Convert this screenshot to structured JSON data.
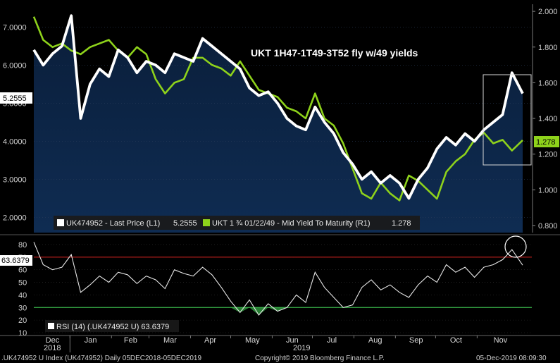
{
  "chart_data": [
    {
      "type": "line",
      "title": "UKT 1H47-1T49-3T52 fly w/49 yields",
      "x_range": [
        "2018-12-05",
        "2019-12-05"
      ],
      "left_axis": {
        "ticks": [
          "7.0000",
          "6.0000",
          "5.0000",
          "4.0000",
          "3.0000",
          "2.0000"
        ],
        "ylim": [
          1.6,
          7.6
        ]
      },
      "right_axis": {
        "ticks": [
          "2.000",
          "1.800",
          "1.600",
          "1.400",
          "1.200",
          "1.000",
          "0.800"
        ],
        "ylim": [
          0.76,
          2.04
        ]
      },
      "series": [
        {
          "name": "UK474952 - Last Price (L1)",
          "axis": "left",
          "color": "#ffffff",
          "last_label": "5.2555",
          "legend_value": "5.2555",
          "x": [
            "2018-12-05",
            "2018-12-12",
            "2018-12-19",
            "2018-12-26",
            "2019-01-02",
            "2019-01-09",
            "2019-01-16",
            "2019-01-23",
            "2019-01-30",
            "2019-02-06",
            "2019-02-13",
            "2019-02-20",
            "2019-02-27",
            "2019-03-06",
            "2019-03-13",
            "2019-03-20",
            "2019-03-27",
            "2019-04-03",
            "2019-04-10",
            "2019-04-17",
            "2019-04-24",
            "2019-05-01",
            "2019-05-08",
            "2019-05-15",
            "2019-05-22",
            "2019-05-29",
            "2019-06-05",
            "2019-06-12",
            "2019-06-19",
            "2019-06-26",
            "2019-07-03",
            "2019-07-10",
            "2019-07-17",
            "2019-07-24",
            "2019-07-31",
            "2019-08-07",
            "2019-08-14",
            "2019-08-21",
            "2019-08-28",
            "2019-09-04",
            "2019-09-11",
            "2019-09-18",
            "2019-09-25",
            "2019-10-02",
            "2019-10-09",
            "2019-10-16",
            "2019-10-23",
            "2019-10-30",
            "2019-11-06",
            "2019-11-13",
            "2019-11-20",
            "2019-11-27",
            "2019-12-05"
          ],
          "values": [
            6.4,
            6.0,
            6.3,
            6.5,
            7.3,
            4.6,
            5.5,
            5.9,
            5.7,
            6.4,
            6.2,
            5.8,
            6.1,
            6.0,
            5.8,
            6.3,
            6.2,
            6.1,
            6.7,
            6.5,
            6.3,
            6.1,
            5.9,
            5.4,
            5.2,
            5.3,
            5.0,
            4.6,
            4.4,
            4.3,
            4.9,
            4.5,
            4.2,
            3.7,
            3.4,
            3.0,
            3.2,
            2.9,
            3.1,
            2.9,
            2.5,
            3.0,
            3.3,
            3.8,
            4.1,
            3.9,
            4.2,
            4.0,
            4.3,
            4.5,
            4.7,
            5.8,
            5.2555
          ]
        },
        {
          "name": "UKT 1 ¾ 01/22/49 - Mid Yield To Maturity (R1)",
          "axis": "right",
          "color": "#8ed21b",
          "last_label": "1.278",
          "legend_value": "1.278",
          "x": [
            "2018-12-05",
            "2018-12-12",
            "2018-12-19",
            "2018-12-26",
            "2019-01-02",
            "2019-01-09",
            "2019-01-16",
            "2019-01-23",
            "2019-01-30",
            "2019-02-06",
            "2019-02-13",
            "2019-02-20",
            "2019-02-27",
            "2019-03-06",
            "2019-03-13",
            "2019-03-20",
            "2019-03-27",
            "2019-04-03",
            "2019-04-10",
            "2019-04-17",
            "2019-04-24",
            "2019-05-01",
            "2019-05-08",
            "2019-05-15",
            "2019-05-22",
            "2019-05-29",
            "2019-06-05",
            "2019-06-12",
            "2019-06-19",
            "2019-06-26",
            "2019-07-03",
            "2019-07-10",
            "2019-07-17",
            "2019-07-24",
            "2019-07-31",
            "2019-08-07",
            "2019-08-14",
            "2019-08-21",
            "2019-08-28",
            "2019-09-04",
            "2019-09-11",
            "2019-09-18",
            "2019-09-25",
            "2019-10-02",
            "2019-10-09",
            "2019-10-16",
            "2019-10-23",
            "2019-10-30",
            "2019-11-06",
            "2019-11-13",
            "2019-11-20",
            "2019-11-27",
            "2019-12-05"
          ],
          "values": [
            1.97,
            1.84,
            1.8,
            1.82,
            1.78,
            1.76,
            1.8,
            1.82,
            1.84,
            1.78,
            1.74,
            1.8,
            1.76,
            1.62,
            1.54,
            1.6,
            1.62,
            1.74,
            1.74,
            1.7,
            1.68,
            1.64,
            1.72,
            1.64,
            1.56,
            1.54,
            1.52,
            1.46,
            1.44,
            1.4,
            1.54,
            1.4,
            1.36,
            1.26,
            1.12,
            0.98,
            0.95,
            1.04,
            0.98,
            0.94,
            1.08,
            1.05,
            1.0,
            0.95,
            1.1,
            1.16,
            1.2,
            1.28,
            1.32,
            1.26,
            1.28,
            1.22,
            1.278
          ]
        }
      ],
      "annotations": [
        "rectangle-highlight-recent-move"
      ]
    },
    {
      "type": "line",
      "name": "RSI (14) (.UK474952 U) 63.6379",
      "ylim": [
        10,
        85
      ],
      "ticks": [
        "80",
        "70",
        "60",
        "50",
        "40",
        "30",
        "20",
        "10"
      ],
      "overbought": 70,
      "oversold": 30,
      "overbought_color": "#c8201e",
      "oversold_color": "#39b54a",
      "last_label": "63.6379",
      "x": [
        "2018-12-05",
        "2018-12-12",
        "2018-12-19",
        "2018-12-26",
        "2019-01-02",
        "2019-01-09",
        "2019-01-16",
        "2019-01-23",
        "2019-01-30",
        "2019-02-06",
        "2019-02-13",
        "2019-02-20",
        "2019-02-27",
        "2019-03-06",
        "2019-03-13",
        "2019-03-20",
        "2019-03-27",
        "2019-04-03",
        "2019-04-10",
        "2019-04-17",
        "2019-04-24",
        "2019-05-01",
        "2019-05-08",
        "2019-05-15",
        "2019-05-22",
        "2019-05-29",
        "2019-06-05",
        "2019-06-12",
        "2019-06-19",
        "2019-06-26",
        "2019-07-03",
        "2019-07-10",
        "2019-07-17",
        "2019-07-24",
        "2019-07-31",
        "2019-08-07",
        "2019-08-14",
        "2019-08-21",
        "2019-08-28",
        "2019-09-04",
        "2019-09-11",
        "2019-09-18",
        "2019-09-25",
        "2019-10-02",
        "2019-10-09",
        "2019-10-16",
        "2019-10-23",
        "2019-10-30",
        "2019-11-06",
        "2019-11-13",
        "2019-11-20",
        "2019-11-27",
        "2019-12-05"
      ],
      "values": [
        82,
        64,
        60,
        62,
        72,
        42,
        48,
        55,
        50,
        58,
        56,
        49,
        55,
        52,
        45,
        60,
        57,
        55,
        62,
        56,
        46,
        35,
        26,
        36,
        24,
        33,
        27,
        30,
        40,
        34,
        58,
        46,
        38,
        30,
        32,
        46,
        52,
        44,
        48,
        42,
        38,
        48,
        55,
        50,
        64,
        58,
        62,
        54,
        62,
        64,
        68,
        76,
        63.64
      ]
    }
  ],
  "x_axis": {
    "months": [
      "Dec",
      "Jan",
      "Feb",
      "Mar",
      "Apr",
      "May",
      "Jun",
      "Jul",
      "Aug",
      "Sep",
      "Oct",
      "Nov"
    ],
    "years": [
      "2018",
      "2019"
    ]
  },
  "footer": {
    "left": ".UK474952 U Index (UK474952)  Daily 05DEC2018-05DEC2019",
    "center": "Copyright© 2019 Bloomberg Finance L.P.",
    "right": "05-Dec-2019 08:09:30"
  }
}
